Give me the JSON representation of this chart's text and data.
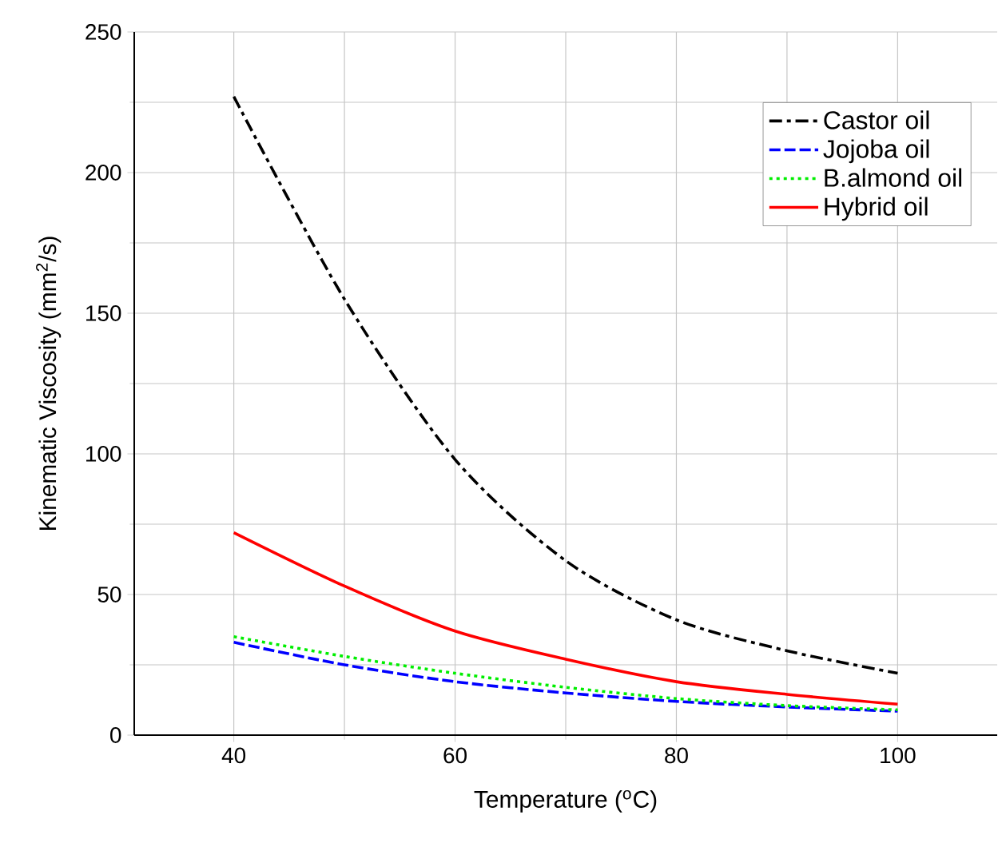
{
  "chart_data": {
    "type": "line",
    "xlabel": "Temperature ($^{o}$C)",
    "ylabel": "Kinematic Viscosity (mm$^{2}$/s)",
    "x": [
      40,
      50,
      60,
      70,
      80,
      90,
      100
    ],
    "series": [
      {
        "name": "Castor oil",
        "color": "#000000",
        "line_style": "dashdot",
        "values": [
          227,
          155,
          98,
          62,
          41,
          30,
          22
        ]
      },
      {
        "name": "Jojoba oil",
        "color": "#0000ff",
        "line_style": "dashed",
        "values": [
          33,
          25,
          19,
          15,
          12,
          10,
          8.5
        ]
      },
      {
        "name": "B.almond oil",
        "color": "#00ee00",
        "line_style": "dotted",
        "values": [
          35,
          28,
          22,
          17,
          13,
          10.5,
          9
        ]
      },
      {
        "name": "Hybrid oil",
        "color": "#ff0000",
        "line_style": "solid",
        "values": [
          72,
          53,
          37,
          27,
          19,
          14.5,
          11
        ]
      }
    ],
    "xlim": [
      31,
      109
    ],
    "ylim": [
      0,
      250
    ],
    "xticks": [
      40,
      60,
      80,
      100
    ],
    "yticks": [
      0,
      50,
      100,
      150,
      200,
      250
    ],
    "grid": true,
    "legend": "top right",
    "marker": "none"
  }
}
